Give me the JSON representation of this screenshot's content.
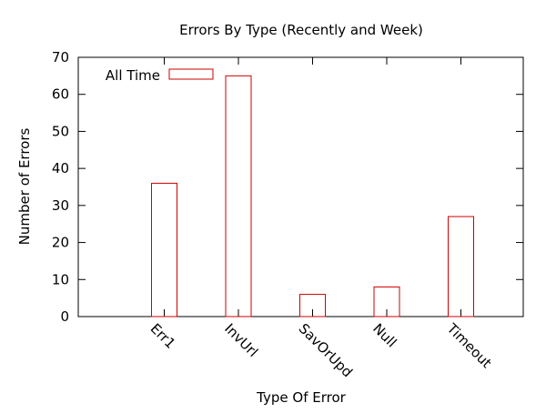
{
  "chart_data": {
    "type": "bar",
    "title": "Errors By Type (Recently and Week)",
    "xlabel": "Type Of Error",
    "ylabel": "Number of Errors",
    "categories": [
      "Err1",
      "InvUrl",
      "SavOrUpd",
      "Null",
      "Timeout"
    ],
    "series": [
      {
        "name": "All Time",
        "values": [
          36,
          65,
          6,
          8,
          27
        ],
        "color": "#cc0000"
      }
    ],
    "ylim": [
      0,
      70
    ],
    "yticks": [
      0,
      10,
      20,
      30,
      40,
      50,
      60,
      70
    ],
    "grid": false,
    "legend_position": "top-left"
  }
}
